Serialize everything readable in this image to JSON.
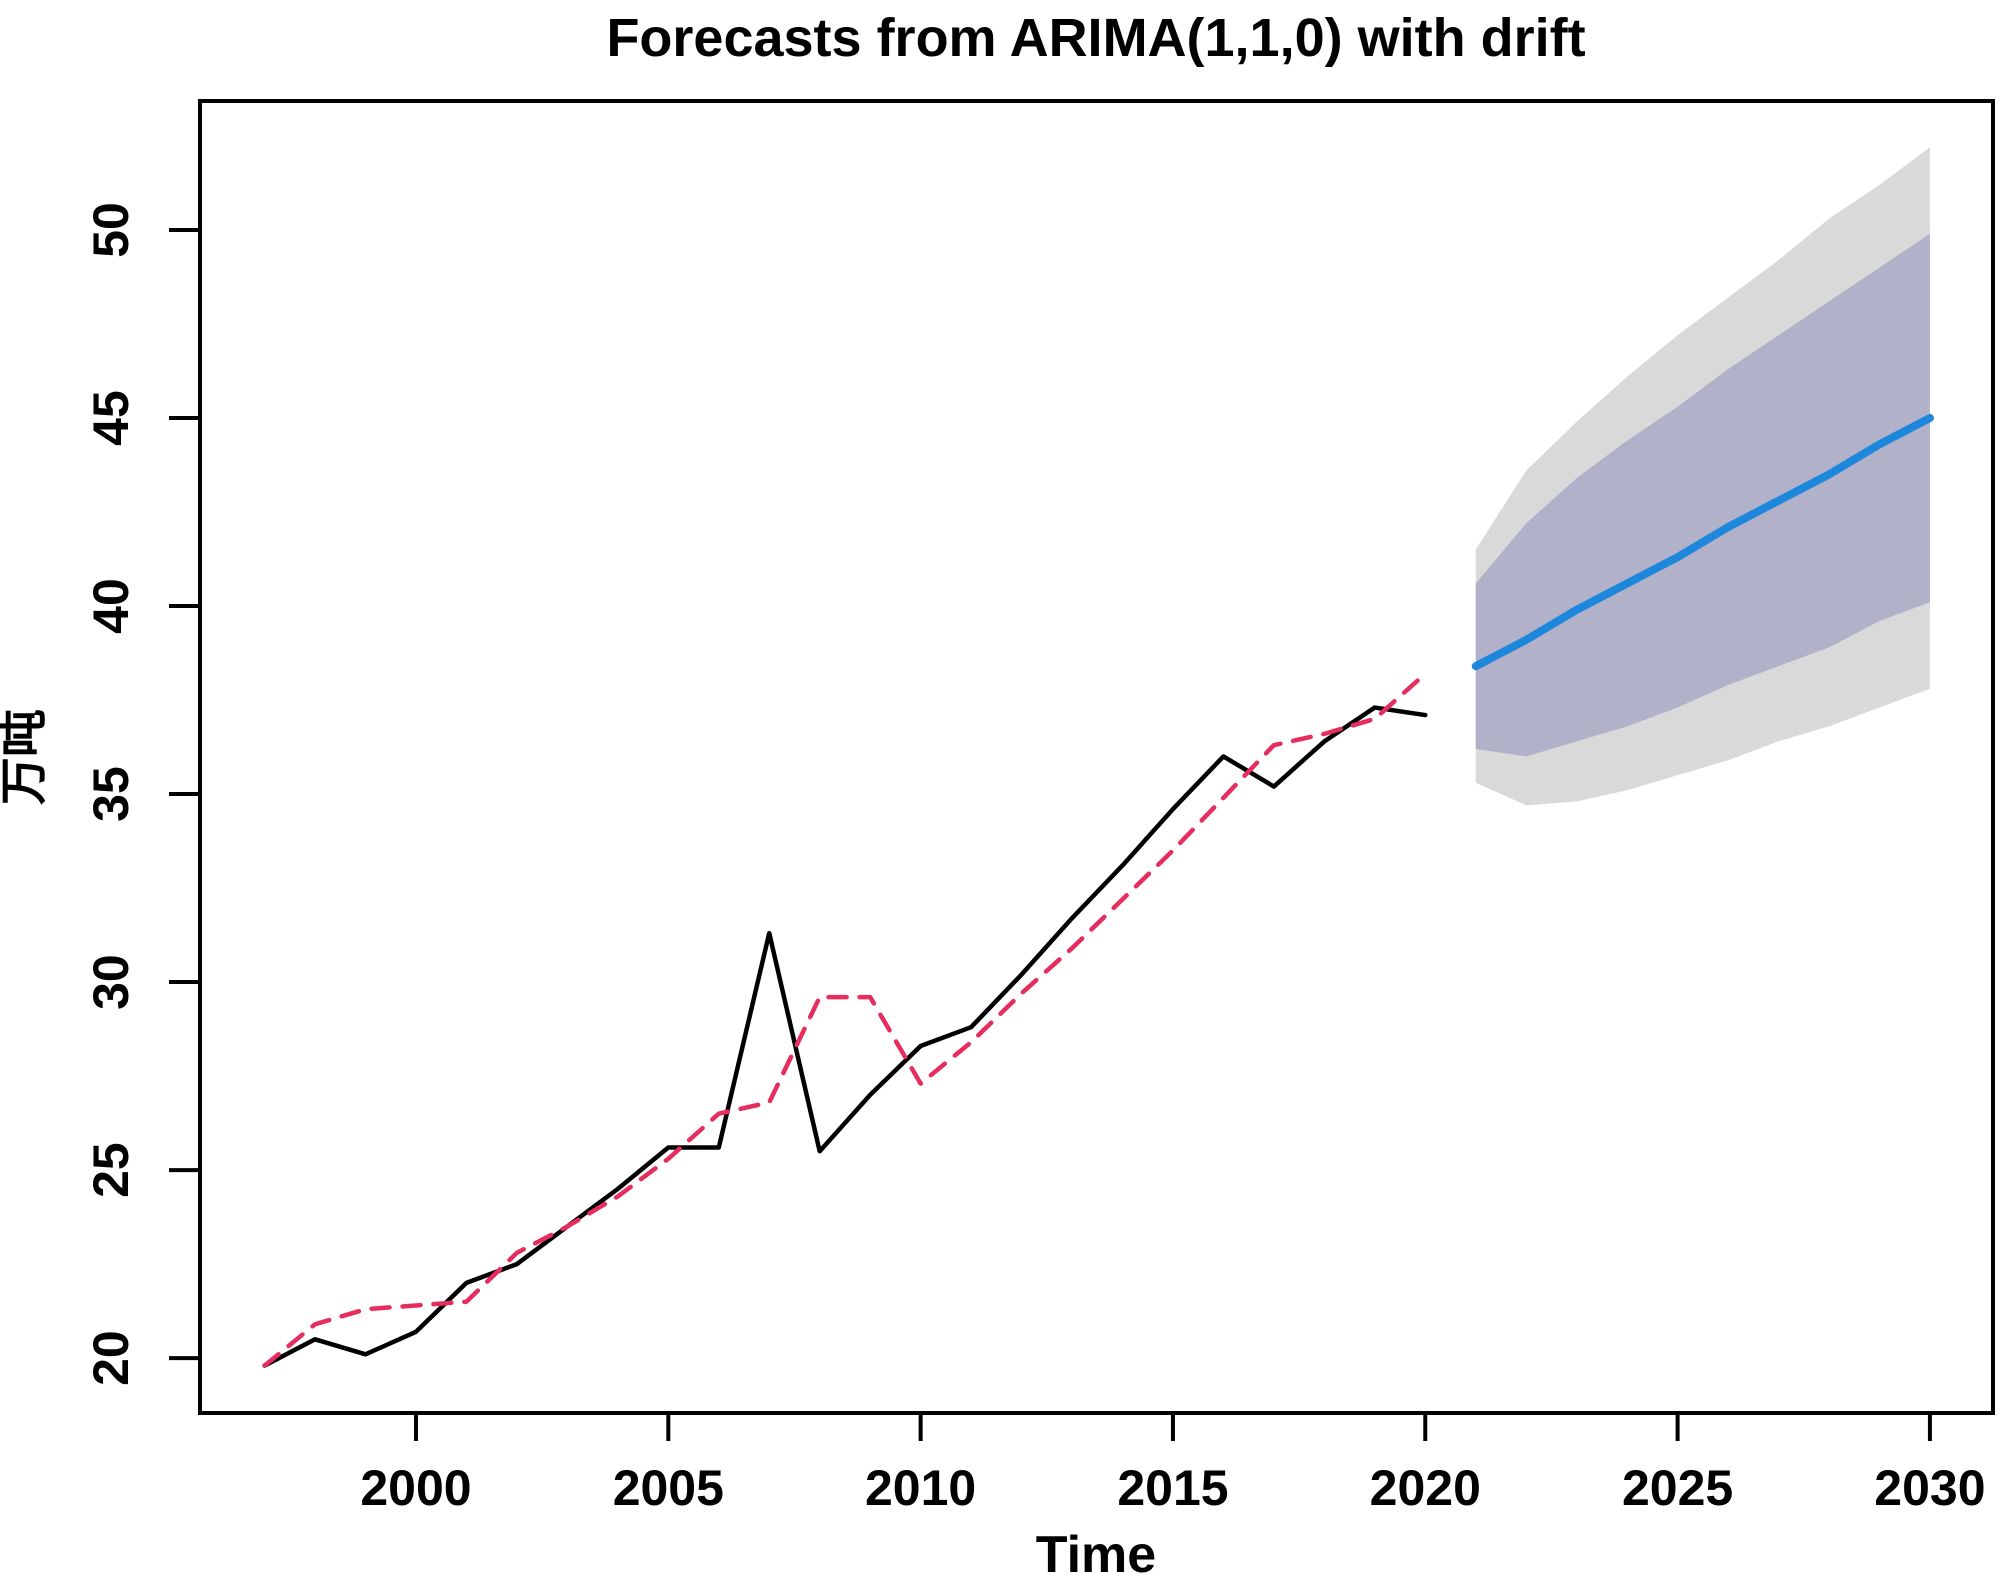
{
  "colors": {
    "observed": "#000000",
    "fitted": "#e62e5e",
    "forecast": "#1d87dc",
    "band80": "#b1b1c9",
    "band95": "#d9d9d9",
    "axis": "#000000",
    "background": "#ffffff"
  },
  "chart_data": {
    "type": "line",
    "title": "Forecasts from ARIMA(1,1,0) with drift",
    "xlabel": "Time",
    "ylabel": "万吨",
    "grid": false,
    "legend": "none",
    "xlim": [
      1995.72,
      2031.25
    ],
    "ylim": [
      18.54,
      53.43
    ],
    "x_ticks": [
      2000,
      2005,
      2010,
      2015,
      2020,
      2025,
      2030
    ],
    "y_ticks": [
      20,
      25,
      30,
      35,
      40,
      45,
      50
    ],
    "series": [
      {
        "name": "observed",
        "style": "solid",
        "color_key": "observed",
        "x": [
          1997,
          1998,
          1999,
          2000,
          2001,
          2002,
          2003,
          2004,
          2005,
          2006,
          2007,
          2008,
          2009,
          2010,
          2011,
          2012,
          2013,
          2014,
          2015,
          2016,
          2017,
          2018,
          2019,
          2020
        ],
        "values": [
          19.8,
          20.5,
          20.1,
          20.7,
          22.0,
          22.5,
          23.5,
          24.5,
          25.6,
          25.6,
          31.3,
          25.5,
          27.0,
          28.3,
          28.8,
          30.2,
          31.7,
          33.1,
          34.6,
          36.0,
          35.2,
          36.4,
          37.3,
          37.1
        ]
      },
      {
        "name": "fitted",
        "style": "dashed",
        "color_key": "fitted",
        "x": [
          1997,
          1998,
          1999,
          2000,
          2001,
          2002,
          2003,
          2004,
          2005,
          2006,
          2007,
          2008,
          2009,
          2010,
          2011,
          2012,
          2013,
          2014,
          2015,
          2016,
          2017,
          2018,
          2019,
          2020
        ],
        "values": [
          19.8,
          20.9,
          21.3,
          21.4,
          21.5,
          22.8,
          23.5,
          24.3,
          25.3,
          26.5,
          26.8,
          29.6,
          29.6,
          27.3,
          28.4,
          29.7,
          30.9,
          32.2,
          33.5,
          34.9,
          36.3,
          36.6,
          37.0,
          38.2
        ]
      },
      {
        "name": "forecast-mean",
        "style": "solid",
        "color_key": "forecast",
        "x": [
          2021,
          2022,
          2023,
          2024,
          2025,
          2026,
          2027,
          2028,
          2029,
          2030
        ],
        "values": [
          38.4,
          39.1,
          39.9,
          40.6,
          41.3,
          42.1,
          42.8,
          43.5,
          44.3,
          45.0
        ]
      }
    ],
    "intervals": {
      "levels": [
        80,
        95
      ],
      "x": [
        2021,
        2022,
        2023,
        2024,
        2025,
        2026,
        2027,
        2028,
        2029,
        2030
      ],
      "lo80": [
        36.2,
        36.0,
        36.4,
        36.8,
        37.3,
        37.9,
        38.4,
        38.9,
        39.6,
        40.1
      ],
      "hi80": [
        40.6,
        42.2,
        43.4,
        44.4,
        45.3,
        46.3,
        47.2,
        48.1,
        49.0,
        49.9
      ],
      "lo95": [
        35.3,
        34.7,
        34.8,
        35.1,
        35.5,
        35.9,
        36.4,
        36.8,
        37.3,
        37.8
      ],
      "hi95": [
        41.5,
        43.6,
        44.9,
        46.1,
        47.2,
        48.2,
        49.2,
        50.3,
        51.2,
        52.2
      ]
    }
  }
}
